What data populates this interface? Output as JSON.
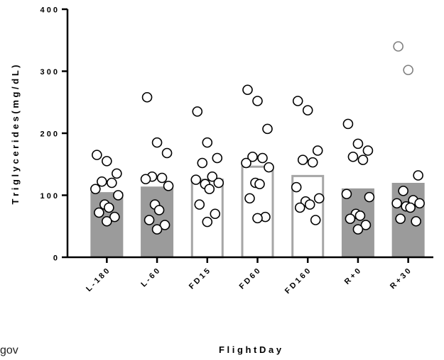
{
  "chart_data": {
    "type": "bar",
    "ylabel": "T r i g l y c e r i d e s   ( m g / d L )",
    "xlabel": "F l i g h t   D a y",
    "ylim": [
      0,
      400
    ],
    "yticks": [
      0,
      100,
      200,
      300,
      400
    ],
    "ytick_labels": [
      "0",
      "1 0 0",
      "2 0 0",
      "3 0 0",
      "4 0 0"
    ],
    "grid": false,
    "categories": [
      "L - 1 8 0",
      "L - 6 0",
      "F D 1 5",
      "F D 6 0",
      "F D 1 6 0",
      "R + 0",
      "R + 3 0"
    ],
    "bar_values": [
      105,
      114,
      125,
      146,
      131,
      111,
      120
    ],
    "bar_styles": [
      "filled",
      "filled",
      "open",
      "open",
      "open",
      "filled",
      "filled"
    ],
    "points": [
      [
        165,
        155,
        135,
        122,
        120,
        110,
        100,
        85,
        80,
        72,
        65,
        58
      ],
      [
        258,
        185,
        168,
        130,
        128,
        126,
        115,
        85,
        76,
        60,
        52,
        45
      ],
      [
        235,
        185,
        160,
        152,
        130,
        125,
        120,
        118,
        110,
        85,
        70,
        57
      ],
      [
        270,
        252,
        207,
        162,
        160,
        152,
        145,
        120,
        118,
        95,
        65,
        63
      ],
      [
        252,
        237,
        172,
        157,
        153,
        113,
        95,
        90,
        85,
        80,
        60
      ],
      [
        215,
        183,
        172,
        162,
        157,
        102,
        97,
        70,
        67,
        62,
        52,
        45
      ],
      [
        340,
        302,
        132,
        107,
        92,
        87,
        87,
        82,
        80,
        62,
        58
      ]
    ],
    "colors": {
      "filled_bar": "#9b9b9b",
      "open_bar_stroke": "#a6a6a6",
      "point_stroke": "#000000",
      "point_fill": "#ffffff",
      "outlier_stroke": "#7f7f7f"
    }
  },
  "footer": {
    "watermark": "gov"
  }
}
